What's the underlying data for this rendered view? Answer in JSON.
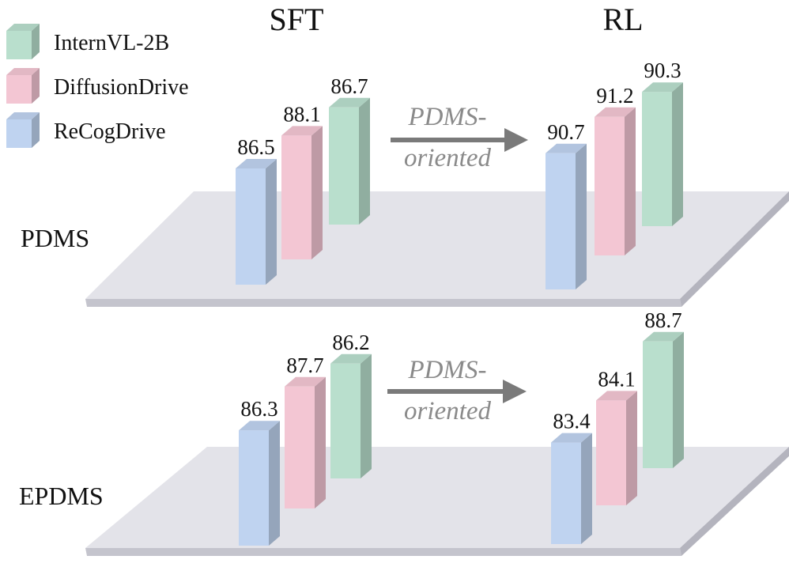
{
  "chart_data": {
    "type": "bar",
    "style": "3d-grouped-bars-on-platforms",
    "stage_titles": [
      "SFT",
      "RL"
    ],
    "arrow_label": [
      "PDMS-",
      "oriented"
    ],
    "legend": [
      {
        "name": "InternVL-2B",
        "color": "#b9dfcd"
      },
      {
        "name": "DiffusionDrive",
        "color": "#f3c6d3"
      },
      {
        "name": "ReCogDrive",
        "color": "#bfd3f0"
      }
    ],
    "series_order": [
      "ReCogDrive",
      "DiffusionDrive",
      "InternVL-2B"
    ],
    "panels": [
      {
        "metric": "PDMS",
        "SFT": {
          "ReCogDrive": 86.5,
          "DiffusionDrive": 88.1,
          "InternVL-2B": 86.7
        },
        "RL": {
          "ReCogDrive": 90.7,
          "DiffusionDrive": 91.2,
          "InternVL-2B": 90.3
        }
      },
      {
        "metric": "EPDMS",
        "SFT": {
          "ReCogDrive": 86.3,
          "DiffusionDrive": 87.7,
          "InternVL-2B": 86.2
        },
        "RL": {
          "ReCogDrive": 83.4,
          "DiffusionDrive": 84.1,
          "InternVL-2B": 88.7
        }
      }
    ]
  }
}
